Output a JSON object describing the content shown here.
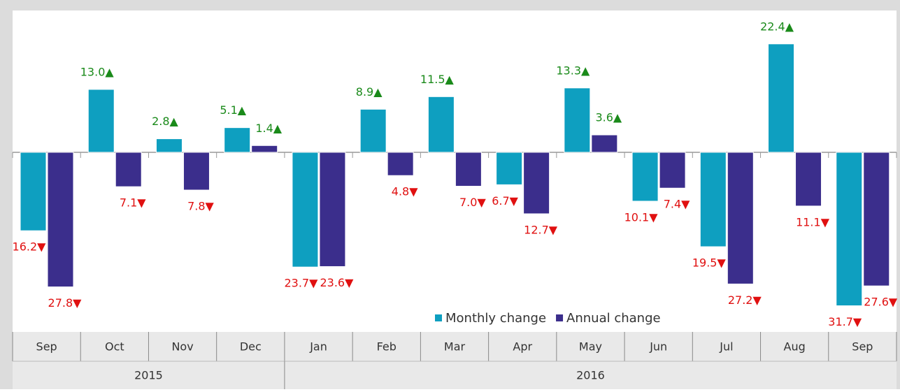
{
  "chart_data": {
    "type": "bar",
    "categories": [
      "Sep",
      "Oct",
      "Nov",
      "Dec",
      "Jan",
      "Feb",
      "Mar",
      "Apr",
      "May",
      "Jun",
      "Jul",
      "Aug",
      "Sep"
    ],
    "category_years": [
      "2015",
      "2015",
      "2015",
      "2015",
      "2016",
      "2016",
      "2016",
      "2016",
      "2016",
      "2016",
      "2016",
      "2016",
      "2016"
    ],
    "series": [
      {
        "name": "Monthly change",
        "color": "#0e9fc0",
        "values": [
          -16.2,
          13.0,
          2.8,
          5.1,
          -23.7,
          8.9,
          11.5,
          -6.7,
          13.3,
          -10.1,
          -19.5,
          22.4,
          -31.7
        ],
        "value_labels": [
          "16.2▼",
          "13.0▲",
          "2.8▲",
          "5.1▲",
          "23.7▼",
          "8.9▲",
          "11.5▲",
          "6.7▼",
          "13.3▲",
          "10.1▼",
          "19.5▼",
          "22.4▲",
          "31.7▼"
        ]
      },
      {
        "name": "Annual change",
        "color": "#3b2e8c",
        "values": [
          -27.8,
          -7.1,
          -7.8,
          1.4,
          -23.6,
          -4.8,
          -7.0,
          -12.7,
          3.6,
          -7.4,
          -27.2,
          -11.1,
          -27.6
        ],
        "value_labels": [
          "27.8▼",
          "7.1▼",
          "7.8▼",
          "1.4▲",
          "23.6▼",
          "4.8▼",
          "7.0▼",
          "12.7▼",
          "3.6▲",
          "7.4▼",
          "27.2▼",
          "11.1▼",
          "27.6▼"
        ]
      }
    ],
    "ylim": [
      -37.1,
      29.3
    ],
    "positive_color": "#1a8a1a",
    "negative_color": "#e01010"
  }
}
